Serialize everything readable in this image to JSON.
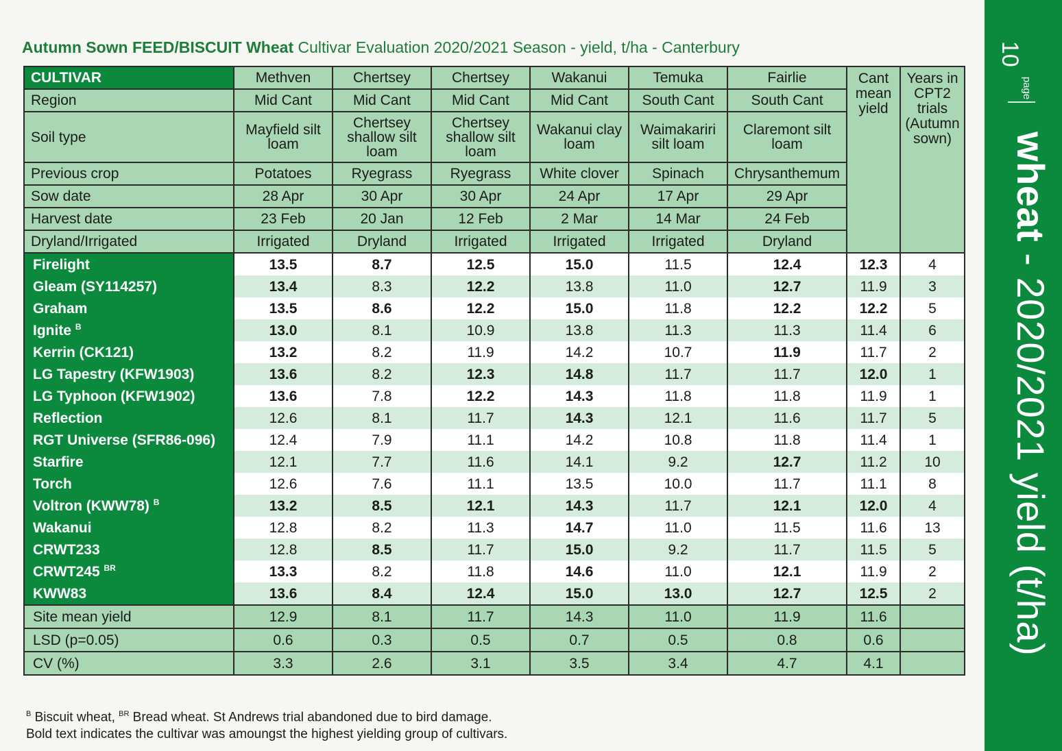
{
  "title": {
    "bold": "Autumn Sown FEED/BISCUIT Wheat",
    "rest": " Cultivar Evaluation 2020/2021 Season - yield, t/ha - Canterbury"
  },
  "header": {
    "cultivar_label": "CULTIVAR",
    "cant_mean": "Cant mean yield",
    "years": "Years in CPT2 trials (Autumn sown)",
    "rows": [
      {
        "label": "CULTIVAR",
        "values": [
          "Methven",
          "Chertsey",
          "Chertsey",
          "Wakanui",
          "Temuka",
          "Fairlie"
        ]
      },
      {
        "label": "Region",
        "values": [
          "Mid Cant",
          "Mid Cant",
          "Mid Cant",
          "Mid Cant",
          "South Cant",
          "South Cant"
        ]
      },
      {
        "label": "Soil type",
        "values": [
          "Mayfield silt loam",
          "Chertsey shallow silt loam",
          "Chertsey shallow silt loam",
          "Wakanui clay loam",
          "Waimakariri silt loam",
          "Claremont silt loam"
        ]
      },
      {
        "label": "Previous crop",
        "values": [
          "Potatoes",
          "Ryegrass",
          "Ryegrass",
          "White clover",
          "Spinach",
          "Chrysanthemum"
        ]
      },
      {
        "label": "Sow date",
        "values": [
          "28 Apr",
          "30 Apr",
          "30 Apr",
          "24 Apr",
          "17 Apr",
          "29 Apr"
        ]
      },
      {
        "label": "Harvest date",
        "values": [
          "23 Feb",
          "20 Jan",
          "12 Feb",
          "2 Mar",
          "14 Mar",
          "24 Feb"
        ]
      },
      {
        "label": "Dryland/Irrigated",
        "values": [
          "Irrigated",
          "Dryland",
          "Irrigated",
          "Irrigated",
          "Irrigated",
          "Dryland"
        ]
      }
    ]
  },
  "cultivars": [
    {
      "name": "Firelight",
      "sup": "",
      "values": [
        "13.5",
        "8.7",
        "12.5",
        "15.0",
        "11.5",
        "12.4"
      ],
      "mean": "12.3",
      "years": "4",
      "bold": [
        true,
        true,
        true,
        true,
        false,
        true
      ],
      "mean_bold": true
    },
    {
      "name": "Gleam (SY114257)",
      "sup": "",
      "values": [
        "13.4",
        "8.3",
        "12.2",
        "13.8",
        "11.0",
        "12.7"
      ],
      "mean": "11.9",
      "years": "3",
      "bold": [
        true,
        false,
        true,
        false,
        false,
        true
      ],
      "mean_bold": false
    },
    {
      "name": "Graham",
      "sup": "",
      "values": [
        "13.5",
        "8.6",
        "12.2",
        "15.0",
        "11.8",
        "12.2"
      ],
      "mean": "12.2",
      "years": "5",
      "bold": [
        true,
        true,
        true,
        true,
        false,
        true
      ],
      "mean_bold": true
    },
    {
      "name": "Ignite",
      "sup": "B",
      "values": [
        "13.0",
        "8.1",
        "10.9",
        "13.8",
        "11.3",
        "11.3"
      ],
      "mean": "11.4",
      "years": "6",
      "bold": [
        true,
        false,
        false,
        false,
        false,
        false
      ],
      "mean_bold": false
    },
    {
      "name": "Kerrin (CK121)",
      "sup": "",
      "values": [
        "13.2",
        "8.2",
        "11.9",
        "14.2",
        "10.7",
        "11.9"
      ],
      "mean": "11.7",
      "years": "2",
      "bold": [
        true,
        false,
        false,
        false,
        false,
        true
      ],
      "mean_bold": false
    },
    {
      "name": "LG Tapestry (KFW1903)",
      "sup": "",
      "values": [
        "13.6",
        "8.2",
        "12.3",
        "14.8",
        "11.7",
        "11.7"
      ],
      "mean": "12.0",
      "years": "1",
      "bold": [
        true,
        false,
        true,
        true,
        false,
        false
      ],
      "mean_bold": true
    },
    {
      "name": "LG Typhoon (KFW1902)",
      "sup": "",
      "values": [
        "13.6",
        "7.8",
        "12.2",
        "14.3",
        "11.8",
        "11.8"
      ],
      "mean": "11.9",
      "years": "1",
      "bold": [
        true,
        false,
        true,
        true,
        false,
        false
      ],
      "mean_bold": false
    },
    {
      "name": "Reflection",
      "sup": "",
      "values": [
        "12.6",
        "8.1",
        "11.7",
        "14.3",
        "12.1",
        "11.6"
      ],
      "mean": "11.7",
      "years": "5",
      "bold": [
        false,
        false,
        false,
        true,
        false,
        false
      ],
      "mean_bold": false
    },
    {
      "name": "RGT Universe (SFR86-096)",
      "sup": "",
      "values": [
        "12.4",
        "7.9",
        "11.1",
        "14.2",
        "10.8",
        "11.8"
      ],
      "mean": "11.4",
      "years": "1",
      "bold": [
        false,
        false,
        false,
        false,
        false,
        false
      ],
      "mean_bold": false
    },
    {
      "name": "Starfire",
      "sup": "",
      "values": [
        "12.1",
        "7.7",
        "11.6",
        "14.1",
        "9.2",
        "12.7"
      ],
      "mean": "11.2",
      "years": "10",
      "bold": [
        false,
        false,
        false,
        false,
        false,
        true
      ],
      "mean_bold": false
    },
    {
      "name": "Torch",
      "sup": "",
      "values": [
        "12.6",
        "7.6",
        "11.1",
        "13.5",
        "10.0",
        "11.7"
      ],
      "mean": "11.1",
      "years": "8",
      "bold": [
        false,
        false,
        false,
        false,
        false,
        false
      ],
      "mean_bold": false
    },
    {
      "name": "Voltron (KWW78)",
      "sup": "B",
      "values": [
        "13.2",
        "8.5",
        "12.1",
        "14.3",
        "11.7",
        "12.1"
      ],
      "mean": "12.0",
      "years": "4",
      "bold": [
        true,
        true,
        true,
        true,
        false,
        true
      ],
      "mean_bold": true
    },
    {
      "name": "Wakanui",
      "sup": "",
      "values": [
        "12.8",
        "8.2",
        "11.3",
        "14.7",
        "11.0",
        "11.5"
      ],
      "mean": "11.6",
      "years": "13",
      "bold": [
        false,
        false,
        false,
        true,
        false,
        false
      ],
      "mean_bold": false
    },
    {
      "name": "CRWT233",
      "sup": "",
      "values": [
        "12.8",
        "8.5",
        "11.7",
        "15.0",
        "9.2",
        "11.7"
      ],
      "mean": "11.5",
      "years": "5",
      "bold": [
        false,
        true,
        false,
        true,
        false,
        false
      ],
      "mean_bold": false
    },
    {
      "name": "CRWT245",
      "sup": "BR",
      "values": [
        "13.3",
        "8.2",
        "11.8",
        "14.6",
        "11.0",
        "12.1"
      ],
      "mean": "11.9",
      "years": "2",
      "bold": [
        true,
        false,
        false,
        true,
        false,
        true
      ],
      "mean_bold": false
    },
    {
      "name": "KWW83",
      "sup": "",
      "values": [
        "13.6",
        "8.4",
        "12.4",
        "15.0",
        "13.0",
        "12.7"
      ],
      "mean": "12.5",
      "years": "2",
      "bold": [
        true,
        true,
        true,
        true,
        true,
        true
      ],
      "mean_bold": true
    }
  ],
  "stats": [
    {
      "label": "Site mean yield",
      "values": [
        "12.9",
        "8.1",
        "11.7",
        "14.3",
        "11.0",
        "11.9"
      ],
      "mean": "11.6"
    },
    {
      "label": "LSD (p=0.05)",
      "values": [
        "0.6",
        "0.3",
        "0.5",
        "0.7",
        "0.5",
        "0.8"
      ],
      "mean": "0.6"
    },
    {
      "label": "CV (%)",
      "values": [
        "3.3",
        "2.6",
        "3.1",
        "3.5",
        "3.4",
        "4.7"
      ],
      "mean": "4.1"
    }
  ],
  "footnotes": {
    "sup_b": "B",
    "line1_a": " Biscuit wheat, ",
    "sup_br": "BR",
    "line1_b": " Bread wheat. St Andrews trial abandoned due to bird damage.",
    "line2": "Bold text indicates the cultivar was amoungst the highest yielding group of cultivars."
  },
  "sidebar": {
    "page_label": "page",
    "page_number": "10",
    "title_bold": "wheat",
    "title_rest": " - 2020/2021 yield (t/ha)"
  },
  "colors": {
    "brand_green": "#0b8a3e",
    "header_green": "#a9d7b3",
    "stripe_green": "#d4ecd9"
  }
}
